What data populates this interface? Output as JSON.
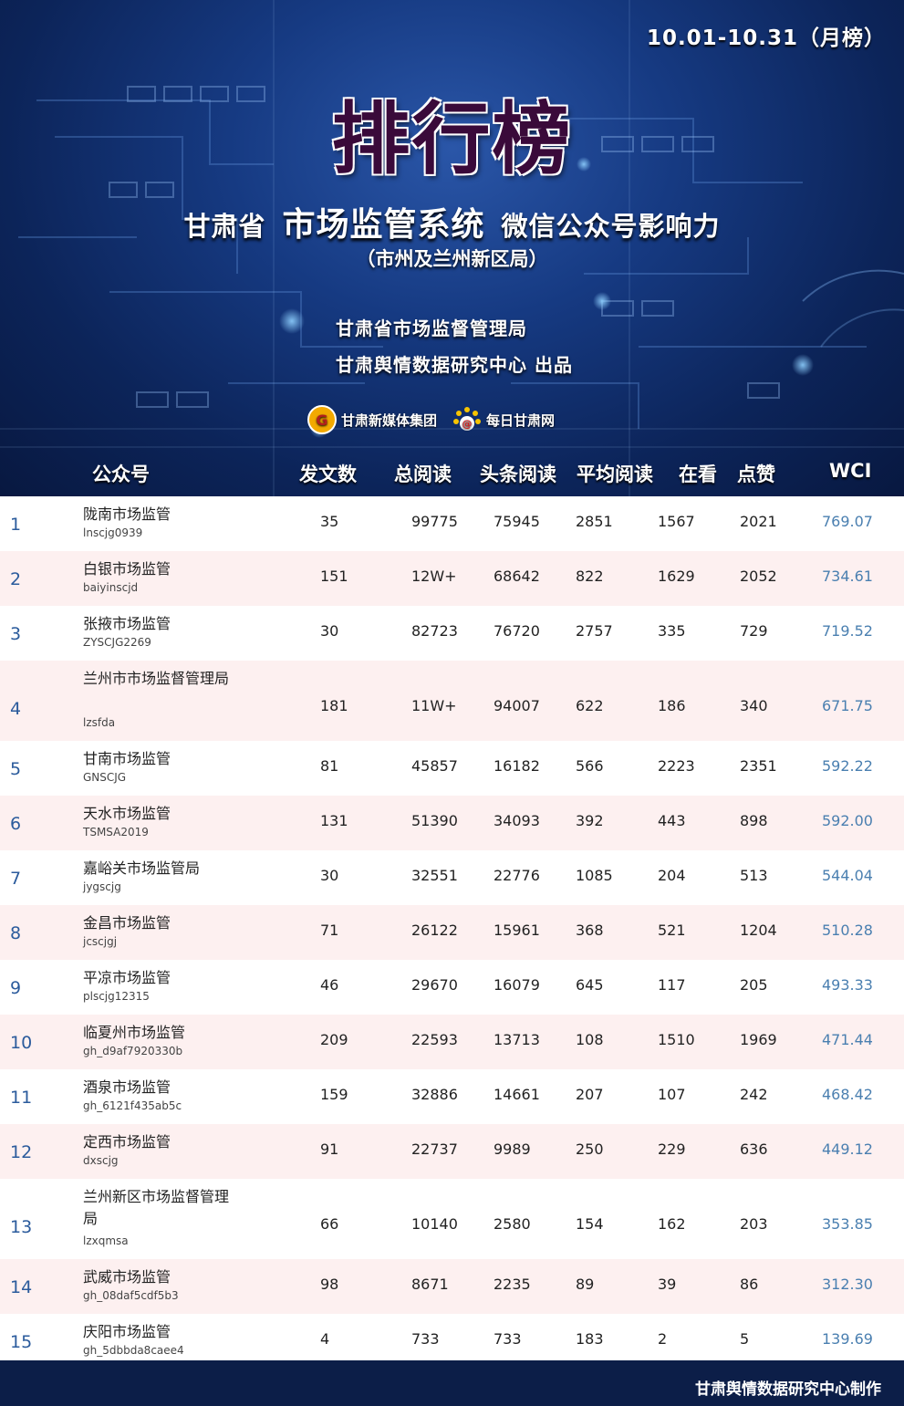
{
  "header": {
    "date_range": "10.01-10.31（月榜）",
    "main_title": "排行榜",
    "subtitle_left": "甘肃省",
    "subtitle_mid": "市场监管系统",
    "subtitle_right": "微信公众号影响力",
    "subtitle_scope": "（市州及兰州新区局）",
    "issuer_1": "甘肃省市场监督管理局",
    "issuer_2": "甘肃舆情数据研究中心 出品",
    "logo_1": "甘肃新媒体集团",
    "logo_2": "每日甘肃网"
  },
  "columns": {
    "account": "公众号",
    "posts": "发文数",
    "total_reads": "总阅读",
    "headline_reads": "头条阅读",
    "avg_reads": "平均阅读",
    "watching": "在看",
    "likes": "点赞",
    "wci": "WCI"
  },
  "rows": [
    {
      "rank": "1",
      "name": "陇南市场监管",
      "account": "lnscjg0939",
      "posts": "35",
      "total": "99775",
      "headline": "75945",
      "avg": "2851",
      "watching": "1567",
      "likes": "2021",
      "wci": "769.07"
    },
    {
      "rank": "2",
      "name": "白银市场监管",
      "account": "baiyinscjd",
      "posts": "151",
      "total": "12W+",
      "headline": "68642",
      "avg": "822",
      "watching": "1629",
      "likes": "2052",
      "wci": "734.61"
    },
    {
      "rank": "3",
      "name": "张掖市场监管",
      "account": "ZYSCJG2269",
      "posts": "30",
      "total": "82723",
      "headline": "76720",
      "avg": "2757",
      "watching": "335",
      "likes": "729",
      "wci": "719.52"
    },
    {
      "rank": "4",
      "name": "兰州市市场监督管理局",
      "account": "lzsfda",
      "posts": "181",
      "total": "11W+",
      "headline": "94007",
      "avg": "622",
      "watching": "186",
      "likes": "340",
      "wci": "671.75"
    },
    {
      "rank": "5",
      "name": "甘南市场监管",
      "account": "GNSCJG",
      "posts": "81",
      "total": "45857",
      "headline": "16182",
      "avg": "566",
      "watching": "2223",
      "likes": "2351",
      "wci": "592.22"
    },
    {
      "rank": "6",
      "name": "天水市场监管",
      "account": "TSMSA2019",
      "posts": "131",
      "total": "51390",
      "headline": "34093",
      "avg": "392",
      "watching": "443",
      "likes": "898",
      "wci": "592.00"
    },
    {
      "rank": "7",
      "name": "嘉峪关市场监管局",
      "account": "jygscjg",
      "posts": "30",
      "total": "32551",
      "headline": "22776",
      "avg": "1085",
      "watching": "204",
      "likes": "513",
      "wci": "544.04"
    },
    {
      "rank": "8",
      "name": "金昌市场监管",
      "account": "jcscjgj",
      "posts": "71",
      "total": "26122",
      "headline": "15961",
      "avg": "368",
      "watching": "521",
      "likes": "1204",
      "wci": "510.28"
    },
    {
      "rank": "9",
      "name": "平凉市场监管",
      "account": "plscjg12315",
      "posts": "46",
      "total": "29670",
      "headline": "16079",
      "avg": "645",
      "watching": "117",
      "likes": "205",
      "wci": "493.33"
    },
    {
      "rank": "10",
      "name": "临夏州市场监管",
      "account": "gh_d9af7920330b",
      "posts": "209",
      "total": "22593",
      "headline": "13713",
      "avg": "108",
      "watching": "1510",
      "likes": "1969",
      "wci": "471.44"
    },
    {
      "rank": "11",
      "name": "酒泉市场监管",
      "account": "gh_6121f435ab5c",
      "posts": "159",
      "total": "32886",
      "headline": "14661",
      "avg": "207",
      "watching": "107",
      "likes": "242",
      "wci": "468.42"
    },
    {
      "rank": "12",
      "name": "定西市场监管",
      "account": "dxscjg",
      "posts": "91",
      "total": "22737",
      "headline": "9989",
      "avg": "250",
      "watching": "229",
      "likes": "636",
      "wci": "449.12"
    },
    {
      "rank": "13",
      "name": "兰州新区市场监督管理局",
      "account": "lzxqmsa",
      "posts": "66",
      "total": "10140",
      "headline": "2580",
      "avg": "154",
      "watching": "162",
      "likes": "203",
      "wci": "353.85"
    },
    {
      "rank": "14",
      "name": "武威市场监管",
      "account": "gh_08daf5cdf5b3",
      "posts": "98",
      "total": "8671",
      "headline": "2235",
      "avg": "89",
      "watching": "39",
      "likes": "86",
      "wci": "312.30"
    },
    {
      "rank": "15",
      "name": "庆阳市场监管",
      "account": "gh_5dbbda8caee4",
      "posts": "4",
      "total": "733",
      "headline": "733",
      "avg": "183",
      "watching": "2",
      "likes": "5",
      "wci": "139.69"
    }
  ],
  "footer": {
    "credit": "甘肃舆情数据研究中心制作"
  }
}
